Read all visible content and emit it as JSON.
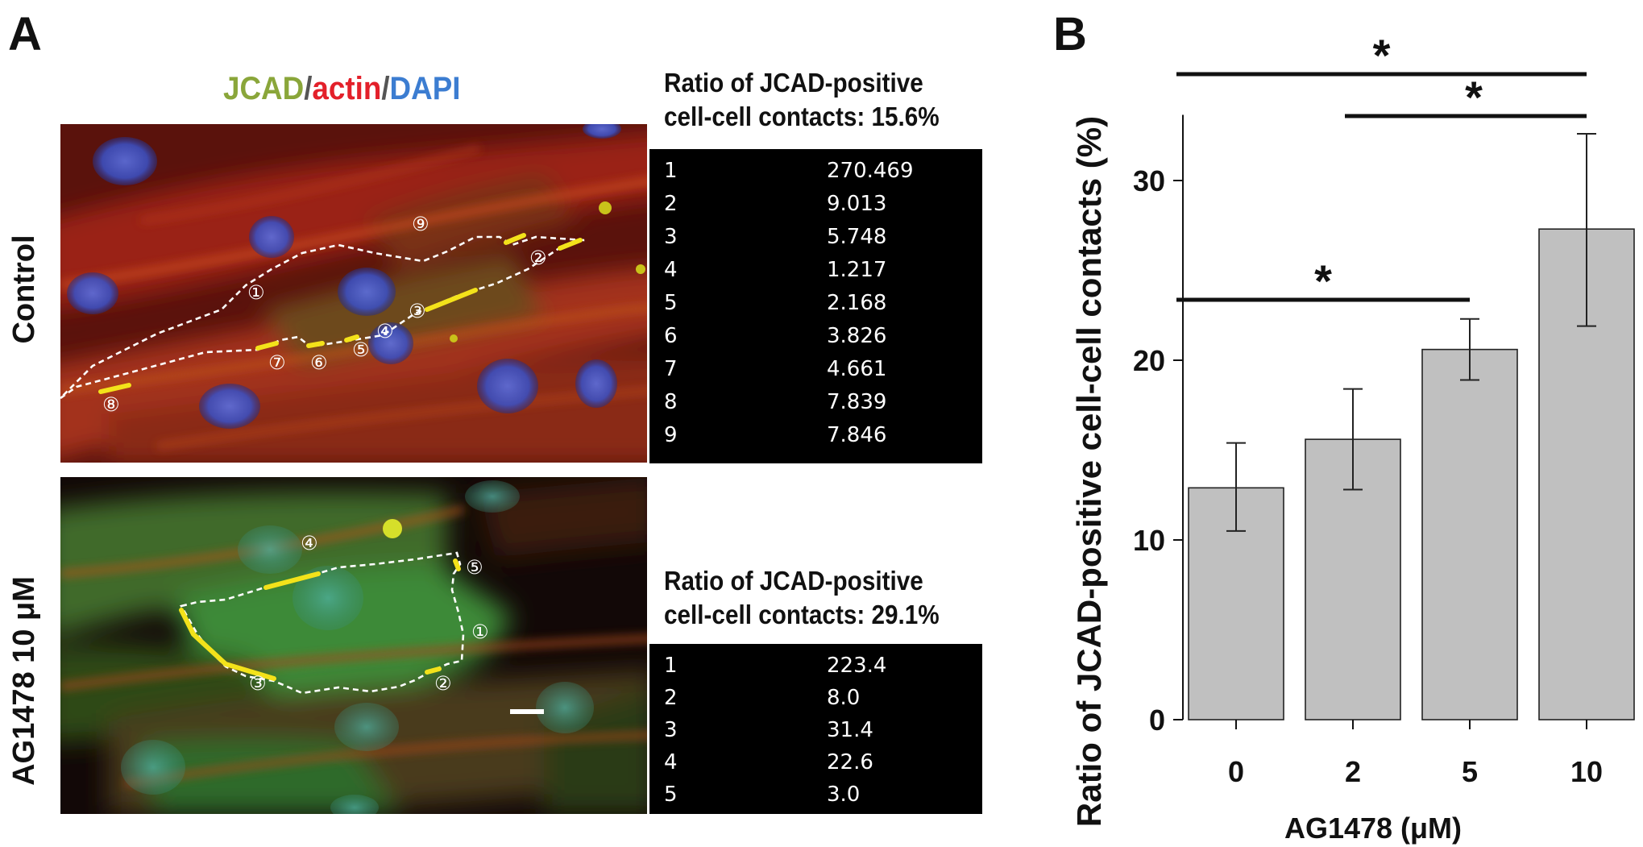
{
  "panel_a": {
    "letter": "A",
    "stain_legend": {
      "jcad": "JCAD",
      "sep1": "/",
      "actin": "actin",
      "sep2": "/",
      "dapi": "DAPI"
    },
    "colors": {
      "jcad": "#8aa63a",
      "actin": "#e3202a",
      "dapi": "#3c7dd1",
      "highlight": "#f3e21a"
    },
    "rows": [
      {
        "label": "Control",
        "ratio_title_line1": "Ratio of JCAD-positive",
        "ratio_title_line2": "cell-cell contacts: 15.6%",
        "contact_markers": [
          "①",
          "②",
          "③",
          "④",
          "⑤",
          "⑥",
          "⑦",
          "⑧",
          "⑨"
        ],
        "measurements": [
          {
            "index": "1",
            "value": "270.469"
          },
          {
            "index": "2",
            "value": "9.013"
          },
          {
            "index": "3",
            "value": "5.748"
          },
          {
            "index": "4",
            "value": "1.217"
          },
          {
            "index": "5",
            "value": "2.168"
          },
          {
            "index": "6",
            "value": "3.826"
          },
          {
            "index": "7",
            "value": "4.661"
          },
          {
            "index": "8",
            "value": "7.839"
          },
          {
            "index": "9",
            "value": "7.846"
          }
        ]
      },
      {
        "label": "AG1478 10 μM",
        "ratio_title_line1": "Ratio of JCAD-positive",
        "ratio_title_line2": "cell-cell contacts: 29.1%",
        "contact_markers": [
          "①",
          "②",
          "③",
          "④",
          "⑤"
        ],
        "measurements": [
          {
            "index": "1",
            "value": "223.4"
          },
          {
            "index": "2",
            "value": "8.0"
          },
          {
            "index": "3",
            "value": "31.4"
          },
          {
            "index": "4",
            "value": "22.6"
          },
          {
            "index": "5",
            "value": "3.0"
          }
        ]
      }
    ]
  },
  "panel_b": {
    "letter": "B",
    "chart_data": {
      "type": "bar",
      "categories": [
        "0",
        "2",
        "5",
        "10"
      ],
      "values": [
        12.9,
        15.6,
        20.6,
        27.3
      ],
      "error_low": [
        10.5,
        12.8,
        18.9,
        21.9
      ],
      "error_high": [
        15.4,
        18.4,
        22.3,
        32.6
      ],
      "xlabel": "AG1478 (μM)",
      "ylabel": "Ratio of JCAD-positive cell-cell contacts (%)",
      "yticks": [
        "0",
        "10",
        "20",
        "30"
      ],
      "ylim": [
        0,
        35
      ],
      "bar_color": "#c0c0c0",
      "grid": false,
      "significance": [
        {
          "from": "0",
          "to": "10",
          "label": "*"
        },
        {
          "from": "2",
          "to": "10",
          "label": "*"
        },
        {
          "from": "0",
          "to": "5",
          "label": "*"
        }
      ]
    }
  }
}
